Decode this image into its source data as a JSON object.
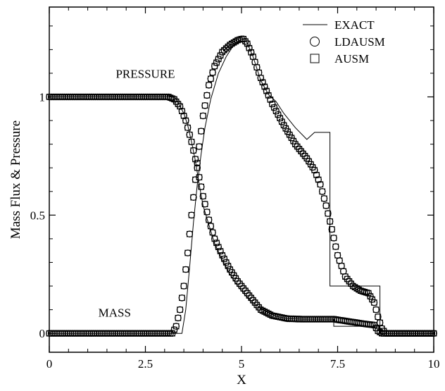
{
  "chart_data": {
    "type": "line",
    "title": "",
    "xlabel": "X",
    "ylabel": "Mass Flux & Pressure",
    "xlim": [
      0,
      10
    ],
    "ylim": [
      -0.08,
      1.38
    ],
    "xticks": [
      0,
      2.5,
      5,
      7.5,
      10
    ],
    "xtick_labels": [
      "0",
      "2.5",
      "5",
      "7.5",
      "10"
    ],
    "yticks": [
      0,
      0.5,
      1
    ],
    "ytick_labels": [
      "0",
      "0.5",
      "1"
    ],
    "grid": false,
    "legend_position": "top-right",
    "annotations": [
      {
        "text": "PRESSURE",
        "x": 2.5,
        "y": 1.08
      },
      {
        "text": "MASS",
        "x": 1.7,
        "y": 0.07
      }
    ],
    "series": [
      {
        "name": "EXACT",
        "marker": "line",
        "segments": [
          {
            "label": "PRESSURE",
            "x": [
              0,
              3.22,
              3.3,
              3.4,
              3.5,
              3.6,
              3.7,
              3.8,
              3.9,
              4.0,
              4.15,
              4.3,
              4.5,
              4.7,
              4.9,
              5.1,
              5.3,
              5.6,
              5.9,
              6.2,
              6.6,
              7.0,
              7.4,
              7.4,
              8.6,
              8.6,
              10
            ],
            "y": [
              1.0,
              1.0,
              0.99,
              0.96,
              0.93,
              0.88,
              0.81,
              0.73,
              0.63,
              0.54,
              0.46,
              0.38,
              0.31,
              0.25,
              0.2,
              0.16,
              0.13,
              0.095,
              0.072,
              0.062,
              0.06,
              0.06,
              0.06,
              0.03,
              0.03,
              0.0,
              0.0
            ]
          },
          {
            "label": "MASS",
            "x": [
              0,
              3.45,
              3.55,
              3.65,
              3.75,
              3.85,
              3.95,
              4.05,
              4.2,
              4.4,
              4.6,
              4.8,
              5.0,
              5.1,
              5.3,
              5.5,
              5.7,
              5.9,
              6.1,
              6.4,
              6.7,
              6.9,
              7.1,
              7.3,
              7.3,
              8.6,
              8.6,
              10
            ],
            "y": [
              0.0,
              0.0,
              0.1,
              0.28,
              0.47,
              0.63,
              0.76,
              0.87,
              0.99,
              1.1,
              1.17,
              1.22,
              1.245,
              1.245,
              1.17,
              1.07,
              1.01,
              0.98,
              0.93,
              0.87,
              0.82,
              0.85,
              0.85,
              0.85,
              0.2,
              0.2,
              0.0,
              0.0
            ]
          }
        ]
      },
      {
        "name": "LDAUSM",
        "marker": "circle",
        "segments": [
          {
            "label": "PRESSURE",
            "x": [
              0,
              3.1,
              3.25,
              3.4,
              3.55,
              3.7,
              3.85,
              4.0,
              4.15,
              4.3,
              4.5,
              4.7,
              4.9,
              5.1,
              5.3,
              5.5,
              5.8,
              6.2,
              6.6,
              7.0,
              7.4,
              7.8,
              8.2,
              8.45,
              8.55,
              8.65,
              10
            ],
            "y": [
              1.0,
              1.0,
              0.99,
              0.96,
              0.9,
              0.81,
              0.7,
              0.58,
              0.48,
              0.4,
              0.33,
              0.27,
              0.22,
              0.18,
              0.14,
              0.1,
              0.075,
              0.062,
              0.06,
              0.06,
              0.06,
              0.05,
              0.04,
              0.035,
              0.01,
              0.0,
              0.0
            ]
          },
          {
            "label": "MASS",
            "x": [
              0,
              3.2,
              3.3,
              3.4,
              3.5,
              3.6,
              3.7,
              3.8,
              3.9,
              4.0,
              4.15,
              4.3,
              4.5,
              4.7,
              4.9,
              5.0,
              5.05,
              5.15,
              5.3,
              5.5,
              5.8,
              6.1,
              6.4,
              6.7,
              6.9,
              7.05,
              7.2,
              7.35,
              7.5,
              7.7,
              7.9,
              8.1,
              8.3,
              8.45,
              8.55,
              8.65,
              8.75,
              10
            ],
            "y": [
              0.0,
              0.0,
              0.03,
              0.1,
              0.2,
              0.34,
              0.5,
              0.65,
              0.79,
              0.92,
              1.05,
              1.13,
              1.19,
              1.22,
              1.24,
              1.245,
              1.245,
              1.225,
              1.17,
              1.08,
              0.97,
              0.88,
              0.8,
              0.74,
              0.69,
              0.63,
              0.54,
              0.44,
              0.33,
              0.24,
              0.2,
              0.18,
              0.17,
              0.13,
              0.07,
              0.02,
              0.0,
              0.0
            ]
          }
        ]
      },
      {
        "name": "AUSM",
        "marker": "square",
        "segments": [
          {
            "label": "PRESSURE",
            "x": [
              0,
              3.1,
              3.25,
              3.4,
              3.55,
              3.7,
              3.85,
              4.0,
              4.15,
              4.3,
              4.5,
              4.7,
              4.9,
              5.1,
              5.3,
              5.5,
              5.8,
              6.2,
              6.6,
              7.0,
              7.4,
              7.8,
              8.2,
              8.45,
              8.55,
              8.65,
              10
            ],
            "y": [
              1.0,
              1.0,
              0.99,
              0.96,
              0.9,
              0.81,
              0.7,
              0.58,
              0.48,
              0.4,
              0.33,
              0.27,
              0.22,
              0.18,
              0.14,
              0.1,
              0.075,
              0.062,
              0.06,
              0.06,
              0.06,
              0.05,
              0.04,
              0.035,
              0.01,
              0.0,
              0.0
            ]
          },
          {
            "label": "MASS",
            "x": [
              0,
              3.2,
              3.3,
              3.4,
              3.5,
              3.6,
              3.7,
              3.8,
              3.9,
              4.0,
              4.15,
              4.3,
              4.5,
              4.7,
              4.9,
              5.0,
              5.05,
              5.15,
              5.3,
              5.5,
              5.8,
              6.1,
              6.4,
              6.7,
              6.9,
              7.05,
              7.2,
              7.35,
              7.5,
              7.7,
              7.9,
              8.1,
              8.3,
              8.45,
              8.55,
              8.65,
              8.75,
              10
            ],
            "y": [
              0.0,
              0.0,
              0.03,
              0.1,
              0.2,
              0.34,
              0.5,
              0.65,
              0.79,
              0.92,
              1.05,
              1.13,
              1.19,
              1.22,
              1.24,
              1.245,
              1.245,
              1.225,
              1.17,
              1.08,
              0.97,
              0.88,
              0.8,
              0.74,
              0.69,
              0.63,
              0.54,
              0.44,
              0.33,
              0.24,
              0.2,
              0.18,
              0.17,
              0.13,
              0.07,
              0.02,
              0.0,
              0.0
            ]
          }
        ]
      }
    ]
  }
}
